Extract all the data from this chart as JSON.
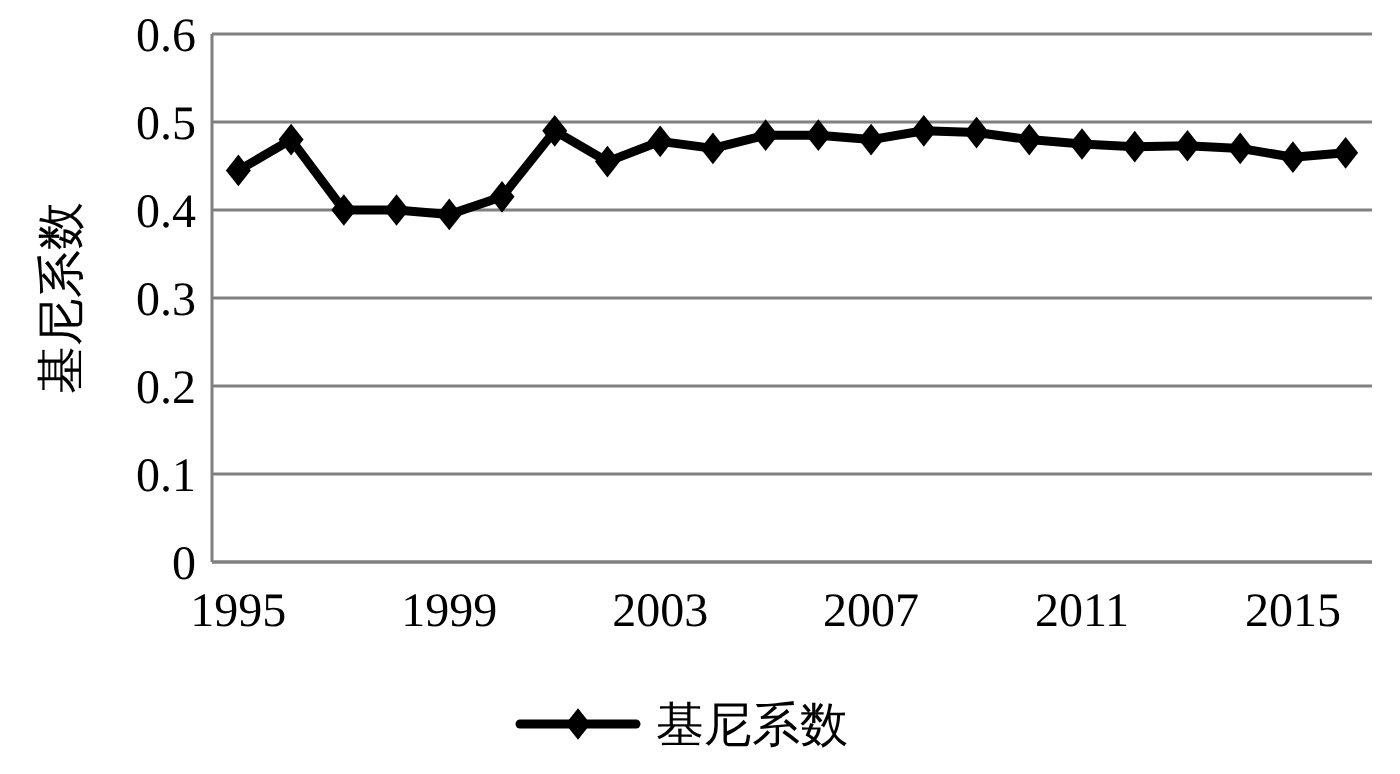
{
  "chart_data": {
    "type": "line",
    "ylabel": "基尼系数",
    "categories": [
      "1995",
      null,
      null,
      null,
      "1999",
      null,
      null,
      null,
      "2003",
      null,
      null,
      null,
      "2007",
      null,
      null,
      null,
      "2011",
      null,
      null,
      null,
      "2015",
      null
    ],
    "series": [
      {
        "name": "基尼系数",
        "color": "#000000",
        "values": [
          0.445,
          0.48,
          0.4,
          0.4,
          0.395,
          0.415,
          0.49,
          0.455,
          0.478,
          0.47,
          0.485,
          0.485,
          0.48,
          0.49,
          0.488,
          0.48,
          0.475,
          0.472,
          0.473,
          0.47,
          0.46,
          0.465
        ]
      }
    ],
    "ylim": [
      0,
      0.6
    ],
    "yticks": [
      0,
      0.1,
      0.2,
      0.3,
      0.4,
      0.5,
      0.6
    ],
    "grid": "y",
    "legend": "bottom",
    "marker": "diamond",
    "line_style": "solid"
  }
}
